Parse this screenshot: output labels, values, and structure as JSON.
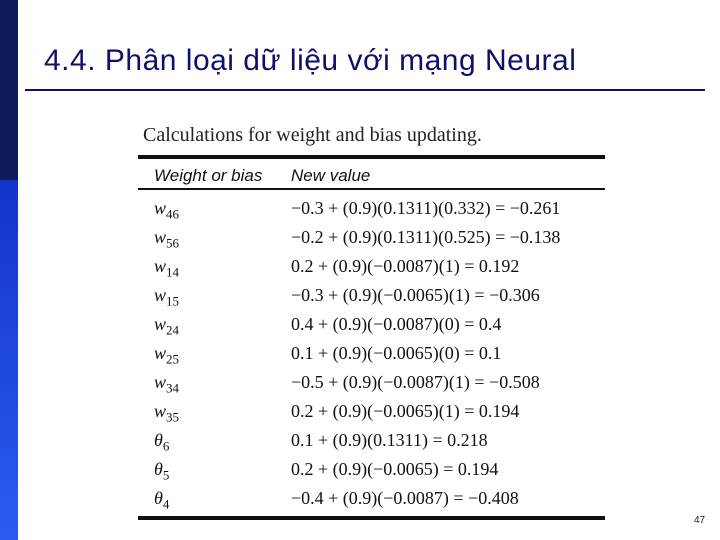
{
  "header": {
    "title": "4.4. Phân loại dữ liệu với mạng Neural"
  },
  "table": {
    "caption": "Calculations for weight and bias updating.",
    "columns": [
      "Weight or bias",
      "New value"
    ],
    "rows": [
      {
        "symbol": "w",
        "subscript": "46",
        "value": "−0.3 + (0.9)(0.1311)(0.332) = −0.261"
      },
      {
        "symbol": "w",
        "subscript": "56",
        "value": "−0.2 + (0.9)(0.1311)(0.525) = −0.138"
      },
      {
        "symbol": "w",
        "subscript": "14",
        "value": "0.2 + (0.9)(−0.0087)(1) = 0.192"
      },
      {
        "symbol": "w",
        "subscript": "15",
        "value": "−0.3 + (0.9)(−0.0065)(1) = −0.306"
      },
      {
        "symbol": "w",
        "subscript": "24",
        "value": "0.4 + (0.9)(−0.0087)(0) = 0.4"
      },
      {
        "symbol": "w",
        "subscript": "25",
        "value": "0.1 + (0.9)(−0.0065)(0) = 0.1"
      },
      {
        "symbol": "w",
        "subscript": "34",
        "value": "−0.5 + (0.9)(−0.0087)(1) = −0.508"
      },
      {
        "symbol": "w",
        "subscript": "35",
        "value": "0.2 + (0.9)(−0.0065)(1) = 0.194"
      },
      {
        "symbol": "θ",
        "subscript": "6",
        "value": "0.1 + (0.9)(0.1311) = 0.218"
      },
      {
        "symbol": "θ",
        "subscript": "5",
        "value": "0.2 + (0.9)(−0.0065) = 0.194"
      },
      {
        "symbol": "θ",
        "subscript": "4",
        "value": "−0.4 + (0.9)(−0.0087) = −0.408"
      }
    ]
  },
  "footer": {
    "page_number": "47"
  }
}
